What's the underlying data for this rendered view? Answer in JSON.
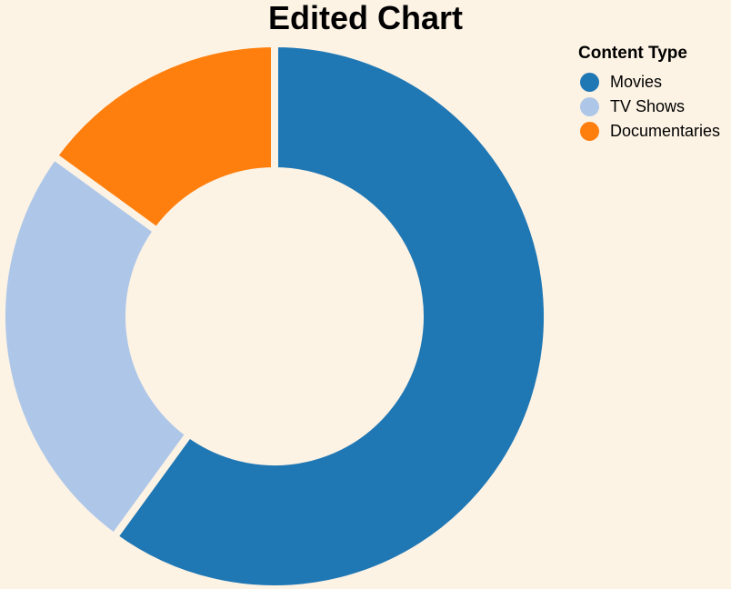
{
  "chart_data": {
    "type": "pie",
    "title": "Edited Chart",
    "legend_title": "Content Type",
    "legend_position": "top-right",
    "categories": [
      "Movies",
      "TV Shows",
      "Documentaries"
    ],
    "values": [
      60,
      25,
      15
    ],
    "colors": [
      "#1f77b4",
      "#aec7e8",
      "#ff7f0e"
    ]
  }
}
